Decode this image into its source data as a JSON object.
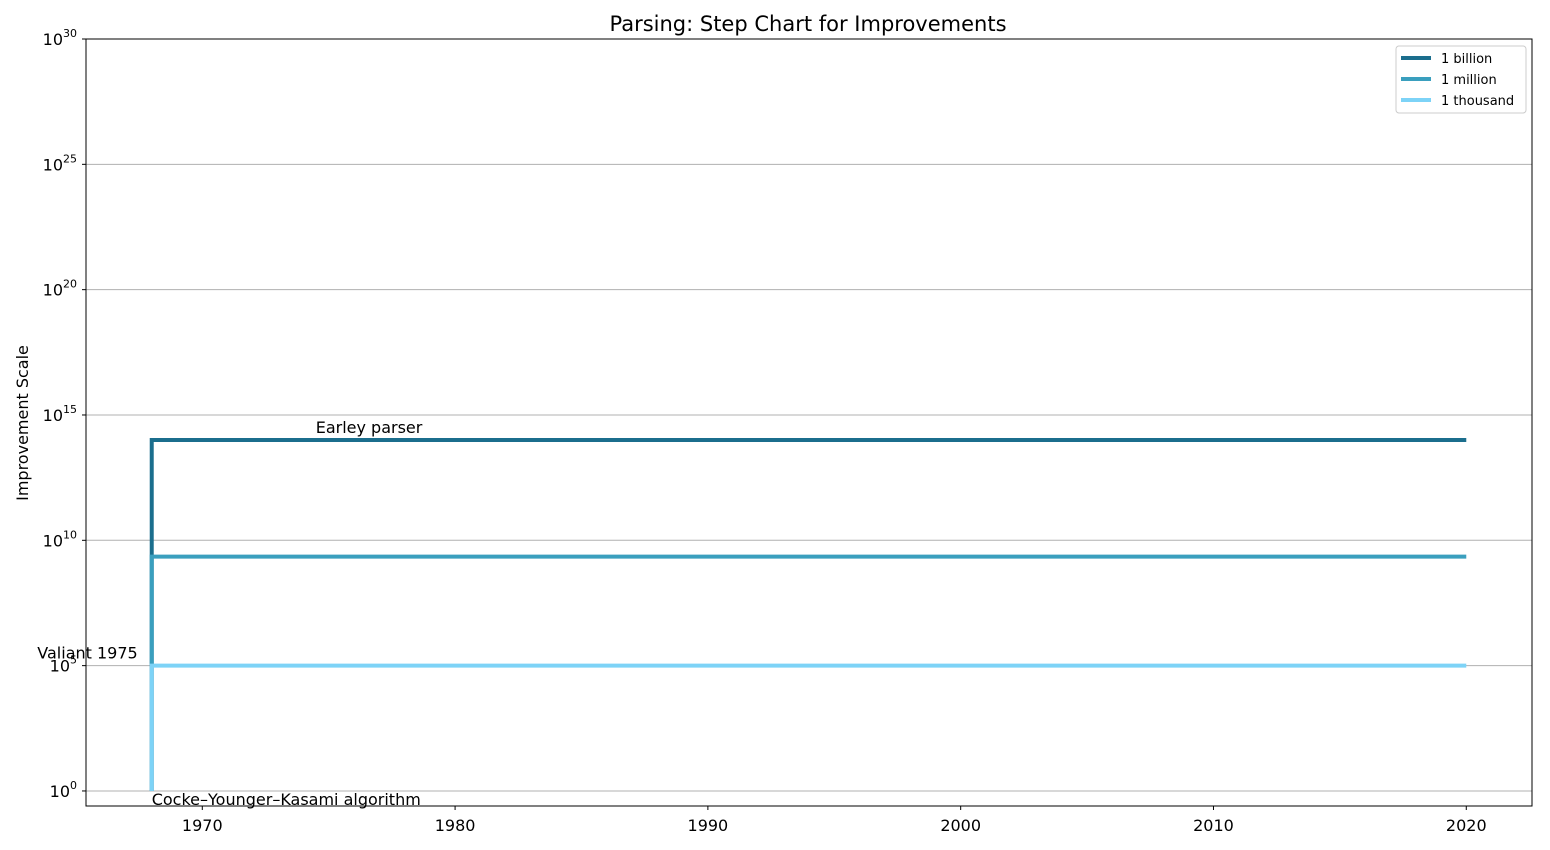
{
  "chart_data": {
    "type": "line",
    "step": true,
    "title": "Parsing: Step Chart for Improvements",
    "xlabel": "",
    "ylabel": "Improvement Scale",
    "yscale": "log",
    "xlim": [
      1965.4,
      2022.6
    ],
    "ylim_exp": [
      -0.6,
      30
    ],
    "x_ticks": [
      1970,
      1980,
      1990,
      2000,
      2010,
      2020
    ],
    "y_tick_exponents": [
      0,
      5,
      10,
      15,
      20,
      25,
      30
    ],
    "y_tick_base": "10",
    "grid": "y",
    "legend_position": "top-right",
    "series": [
      {
        "name": "1 billion",
        "color": "#1b6e8d",
        "points": [
          [
            1968,
            0
          ],
          [
            1968,
            14
          ],
          [
            2020,
            14
          ]
        ]
      },
      {
        "name": "1 million",
        "color": "#3a9fbe",
        "points": [
          [
            1968,
            5
          ],
          [
            1968,
            9.35
          ],
          [
            2020,
            9.35
          ]
        ]
      },
      {
        "name": "1 thousand",
        "color": "#7dd3f7",
        "points": [
          [
            1968,
            0
          ],
          [
            1968,
            5
          ],
          [
            2020,
            5
          ]
        ]
      }
    ],
    "annotations": [
      {
        "text": "Earley parser",
        "x": 1968,
        "y": 14
      },
      {
        "text": "Valiant 1975",
        "x": 1968,
        "y": 5
      },
      {
        "text": "Cocke–Younger–Kasami algorithm",
        "x": 1968,
        "y": 0
      }
    ]
  }
}
